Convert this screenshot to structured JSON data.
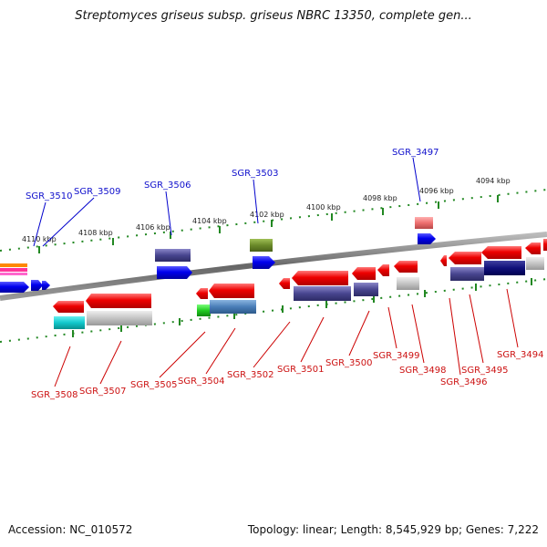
{
  "title": "Streptomyces griseus subsp. griseus NBRC 13350, complete gen...",
  "footer": {
    "accession": "Accession: NC_010572",
    "summary": "Topology: linear; Length: 8,545,929 bp; Genes: 7,222"
  },
  "kbp_labels": [
    "4110 kbp",
    "4108 kbp",
    "4106 kbp",
    "4104 kbp",
    "4102 kbp",
    "4100 kbp",
    "4098 kbp",
    "4096 kbp",
    "4094 kbp"
  ],
  "top_gene_labels": [
    "SGR_3510",
    "SGR_3509",
    "SGR_3506",
    "SGR_3503",
    "SGR_3497"
  ],
  "bottom_gene_labels": [
    "SGR_3508",
    "SGR_3507",
    "SGR_3505",
    "SGR_3504",
    "SGR_3502",
    "SGR_3501",
    "SGR_3500",
    "SGR_3499",
    "SGR_3498",
    "SGR_3496",
    "SGR_3495",
    "SGR_3494"
  ],
  "colors": {
    "top_label": "#1010cc",
    "bottom_label": "#cc1111",
    "forward_gene": "#0000ee",
    "reverse_gene": "#ee0000",
    "backbone": "#777777",
    "tick": "#228822"
  }
}
